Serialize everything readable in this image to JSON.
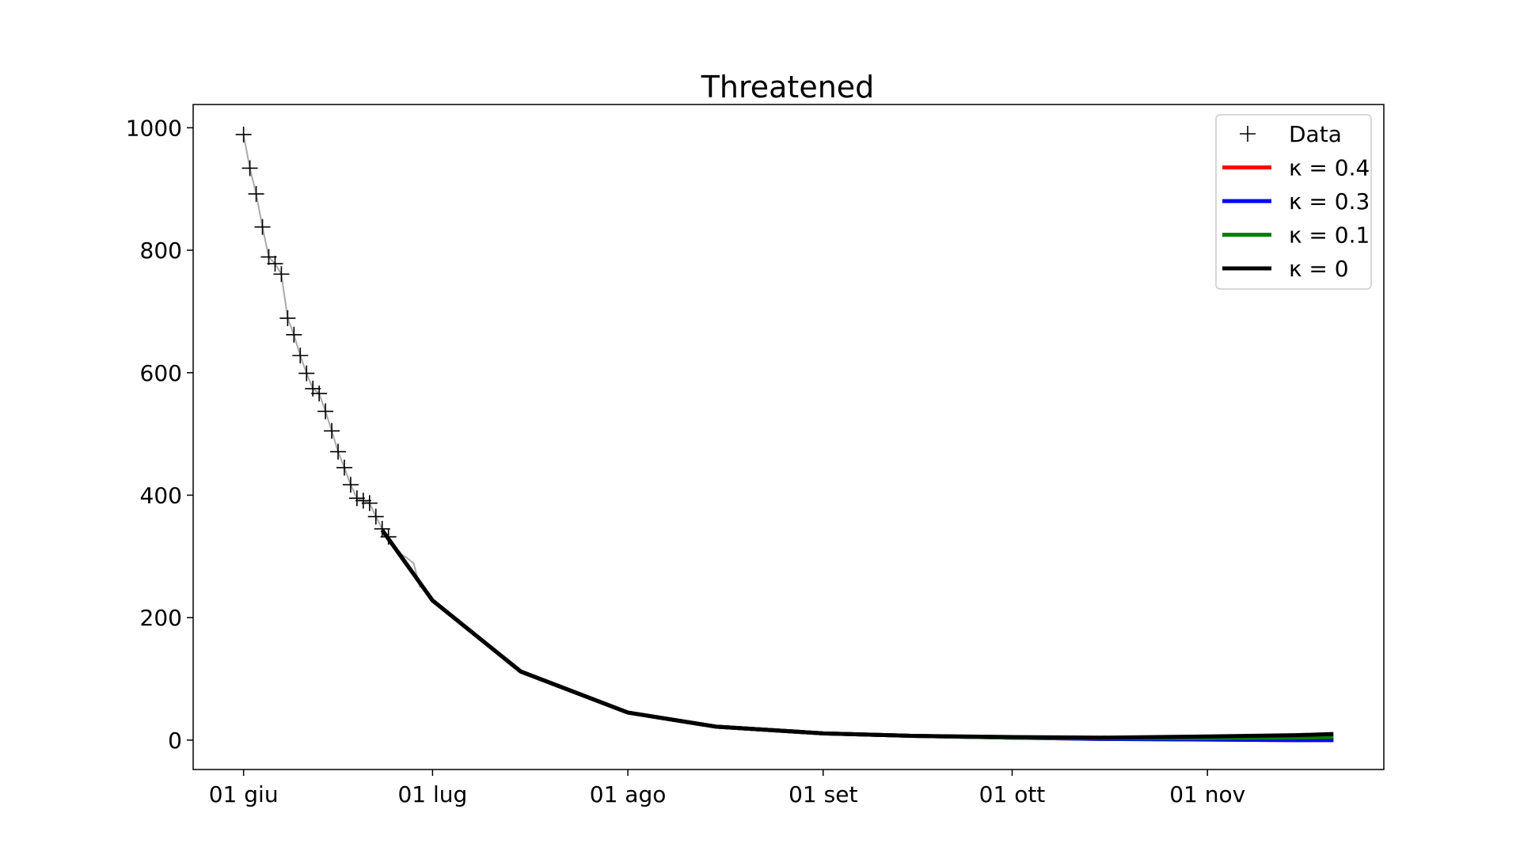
{
  "chart_data": {
    "type": "line",
    "title": "Threatened",
    "xlabel": "",
    "ylabel": "",
    "x_type": "date",
    "xlim": [
      "2020-05-24",
      "2020-11-29"
    ],
    "ylim": [
      -48,
      1038
    ],
    "x_ticks": [
      {
        "value": "2020-06-01",
        "label": "01 giu"
      },
      {
        "value": "2020-07-01",
        "label": "01 lug"
      },
      {
        "value": "2020-08-01",
        "label": "01 ago"
      },
      {
        "value": "2020-09-01",
        "label": "01 set"
      },
      {
        "value": "2020-10-01",
        "label": "01 ott"
      },
      {
        "value": "2020-11-01",
        "label": "01 nov"
      }
    ],
    "y_ticks": [
      0,
      200,
      400,
      600,
      800,
      1000
    ],
    "grid": false,
    "legend": "top-right",
    "observed_data": {
      "name": "Data",
      "marker": "+",
      "color": "#000000",
      "x": [
        "2020-06-01",
        "2020-06-02",
        "2020-06-03",
        "2020-06-04",
        "2020-06-05",
        "2020-06-06",
        "2020-06-07",
        "2020-06-08",
        "2020-06-09",
        "2020-06-10",
        "2020-06-11",
        "2020-06-12",
        "2020-06-13",
        "2020-06-14",
        "2020-06-15",
        "2020-06-16",
        "2020-06-17",
        "2020-06-18",
        "2020-06-19",
        "2020-06-20",
        "2020-06-21",
        "2020-06-22",
        "2020-06-23",
        "2020-06-24"
      ],
      "y": [
        989,
        934,
        892,
        838,
        789,
        778,
        761,
        689,
        662,
        628,
        599,
        574,
        566,
        537,
        505,
        471,
        445,
        417,
        395,
        391,
        387,
        365,
        345,
        332
      ]
    },
    "trend_line": {
      "color": "#aaaaaa",
      "x": [
        "2020-06-01",
        "2020-06-02",
        "2020-06-03",
        "2020-06-04",
        "2020-06-05",
        "2020-06-06",
        "2020-06-07",
        "2020-06-08",
        "2020-06-09",
        "2020-06-10",
        "2020-06-11",
        "2020-06-12",
        "2020-06-13",
        "2020-06-14",
        "2020-06-15",
        "2020-06-16",
        "2020-06-17",
        "2020-06-18",
        "2020-06-19",
        "2020-06-20",
        "2020-06-21",
        "2020-06-22",
        "2020-06-23",
        "2020-06-24",
        "2020-06-25",
        "2020-06-26",
        "2020-06-27",
        "2020-06-28",
        "2020-06-29"
      ],
      "y": [
        989,
        934,
        892,
        838,
        789,
        778,
        761,
        689,
        662,
        628,
        599,
        574,
        566,
        537,
        505,
        471,
        445,
        417,
        395,
        391,
        387,
        365,
        345,
        332,
        318,
        304,
        297,
        289,
        249
      ]
    },
    "series": [
      {
        "name": "κ = 0.4",
        "kappa": "0.4",
        "color": "#ff0000",
        "x": [
          "2020-06-23",
          "2020-07-01",
          "2020-07-15",
          "2020-08-01",
          "2020-08-15",
          "2020-09-01",
          "2020-09-15",
          "2020-10-01",
          "2020-10-15",
          "2020-11-01",
          "2020-11-15",
          "2020-11-21"
        ],
        "y": [
          343,
          228,
          112,
          45,
          22,
          11,
          7,
          4,
          2,
          1,
          0,
          0
        ]
      },
      {
        "name": "κ = 0.3",
        "kappa": "0.3",
        "color": "#0000ff",
        "x": [
          "2020-06-23",
          "2020-07-01",
          "2020-07-15",
          "2020-08-01",
          "2020-08-15",
          "2020-09-01",
          "2020-09-15",
          "2020-10-01",
          "2020-10-15",
          "2020-11-01",
          "2020-11-15",
          "2020-11-21"
        ],
        "y": [
          343,
          228,
          112,
          45,
          22,
          11,
          7,
          4,
          2,
          1,
          0,
          0
        ]
      },
      {
        "name": "κ = 0.1",
        "kappa": "0.1",
        "color": "#008000",
        "x": [
          "2020-06-23",
          "2020-07-01",
          "2020-07-15",
          "2020-08-01",
          "2020-08-15",
          "2020-09-01",
          "2020-09-15",
          "2020-10-01",
          "2020-10-15",
          "2020-11-01",
          "2020-11-15",
          "2020-11-21"
        ],
        "y": [
          343,
          228,
          112,
          45,
          22,
          11,
          7,
          4,
          3,
          3,
          4,
          5
        ]
      },
      {
        "name": "κ = 0",
        "kappa": "0",
        "color": "#000000",
        "x": [
          "2020-06-23",
          "2020-07-01",
          "2020-07-15",
          "2020-08-01",
          "2020-08-15",
          "2020-09-01",
          "2020-09-15",
          "2020-10-01",
          "2020-10-15",
          "2020-11-01",
          "2020-11-15",
          "2020-11-21"
        ],
        "y": [
          343,
          228,
          112,
          45,
          22,
          11,
          7,
          5,
          4,
          6,
          8,
          10
        ]
      }
    ]
  }
}
